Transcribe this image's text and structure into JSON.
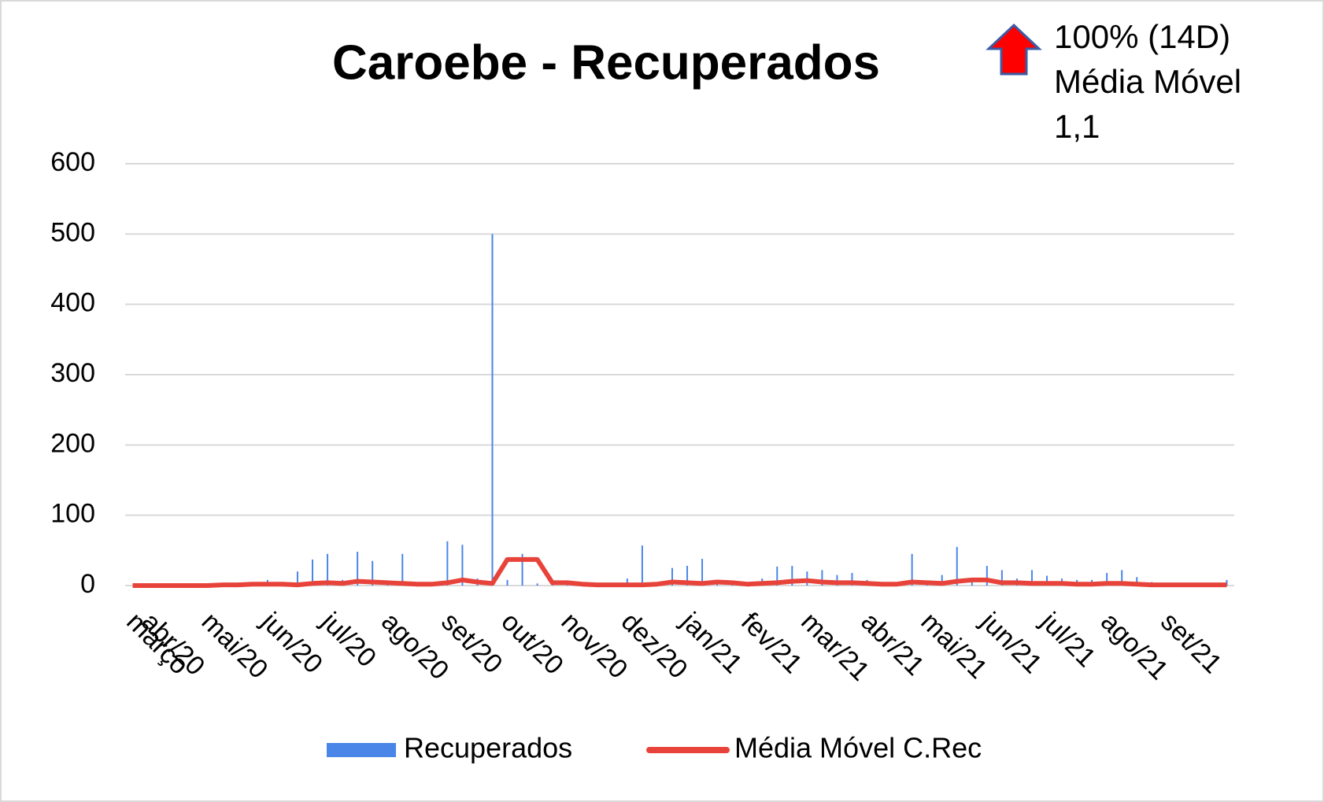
{
  "chart_data": {
    "type": "bar-line",
    "title": "Caroebe - Recuperados",
    "annotation": [
      "100% (14D)",
      "Média Móvel",
      "1,1"
    ],
    "categories": [
      "março",
      "abr/20",
      null,
      null,
      null,
      "mai/20",
      null,
      null,
      null,
      "jun/20",
      null,
      null,
      null,
      "jul/20",
      null,
      null,
      null,
      "ago/20",
      null,
      null,
      null,
      "set/20",
      null,
      null,
      null,
      "out/20",
      null,
      null,
      null,
      "nov/20",
      null,
      null,
      null,
      "dez/20",
      null,
      null,
      null,
      "jan/21",
      null,
      null,
      null,
      "fev/21",
      null,
      null,
      null,
      "mar/21",
      null,
      null,
      null,
      "abr/21",
      null,
      null,
      null,
      "mai/21",
      null,
      null,
      null,
      "jun/21",
      null,
      null,
      null,
      "jul/21",
      null,
      null,
      null,
      "ago/21",
      null,
      null,
      null,
      "set/21",
      null,
      null,
      null,
      null
    ],
    "series": [
      {
        "name": "Recuperados",
        "color": "#4a86e8",
        "kind": "bar",
        "values": [
          0,
          0,
          0,
          0,
          0,
          1,
          2,
          3,
          5,
          8,
          4,
          20,
          37,
          45,
          8,
          48,
          35,
          5,
          45,
          3,
          2,
          63,
          58,
          10,
          500,
          8,
          45,
          3,
          2,
          1,
          2,
          1,
          3,
          10,
          57,
          5,
          25,
          28,
          38,
          4,
          2,
          5,
          10,
          27,
          28,
          20,
          22,
          15,
          18,
          8,
          5,
          3,
          45,
          4,
          15,
          55,
          10,
          28,
          22,
          10,
          22,
          14,
          10,
          8,
          8,
          18,
          22,
          12,
          5,
          3,
          2,
          1,
          1,
          8
        ]
      },
      {
        "name": "Média Móvel C.Rec",
        "color": "#e8433a",
        "kind": "line",
        "values": [
          0,
          0,
          0,
          0,
          0,
          0,
          1,
          1,
          2,
          2,
          2,
          1,
          3,
          4,
          3,
          6,
          5,
          4,
          3,
          2,
          2,
          4,
          8,
          5,
          3,
          37,
          37,
          37,
          4,
          4,
          2,
          1,
          1,
          1,
          1,
          2,
          5,
          4,
          3,
          5,
          4,
          2,
          3,
          4,
          6,
          7,
          5,
          4,
          4,
          3,
          2,
          2,
          5,
          4,
          3,
          6,
          8,
          8,
          4,
          4,
          3,
          3,
          3,
          2,
          2,
          3,
          3,
          2,
          1,
          1,
          1,
          1,
          1,
          1
        ]
      }
    ],
    "ylim": [
      0,
      600
    ],
    "yticks": [
      0,
      100,
      200,
      300,
      400,
      500,
      600
    ],
    "grid": true,
    "legend": "bottom"
  }
}
